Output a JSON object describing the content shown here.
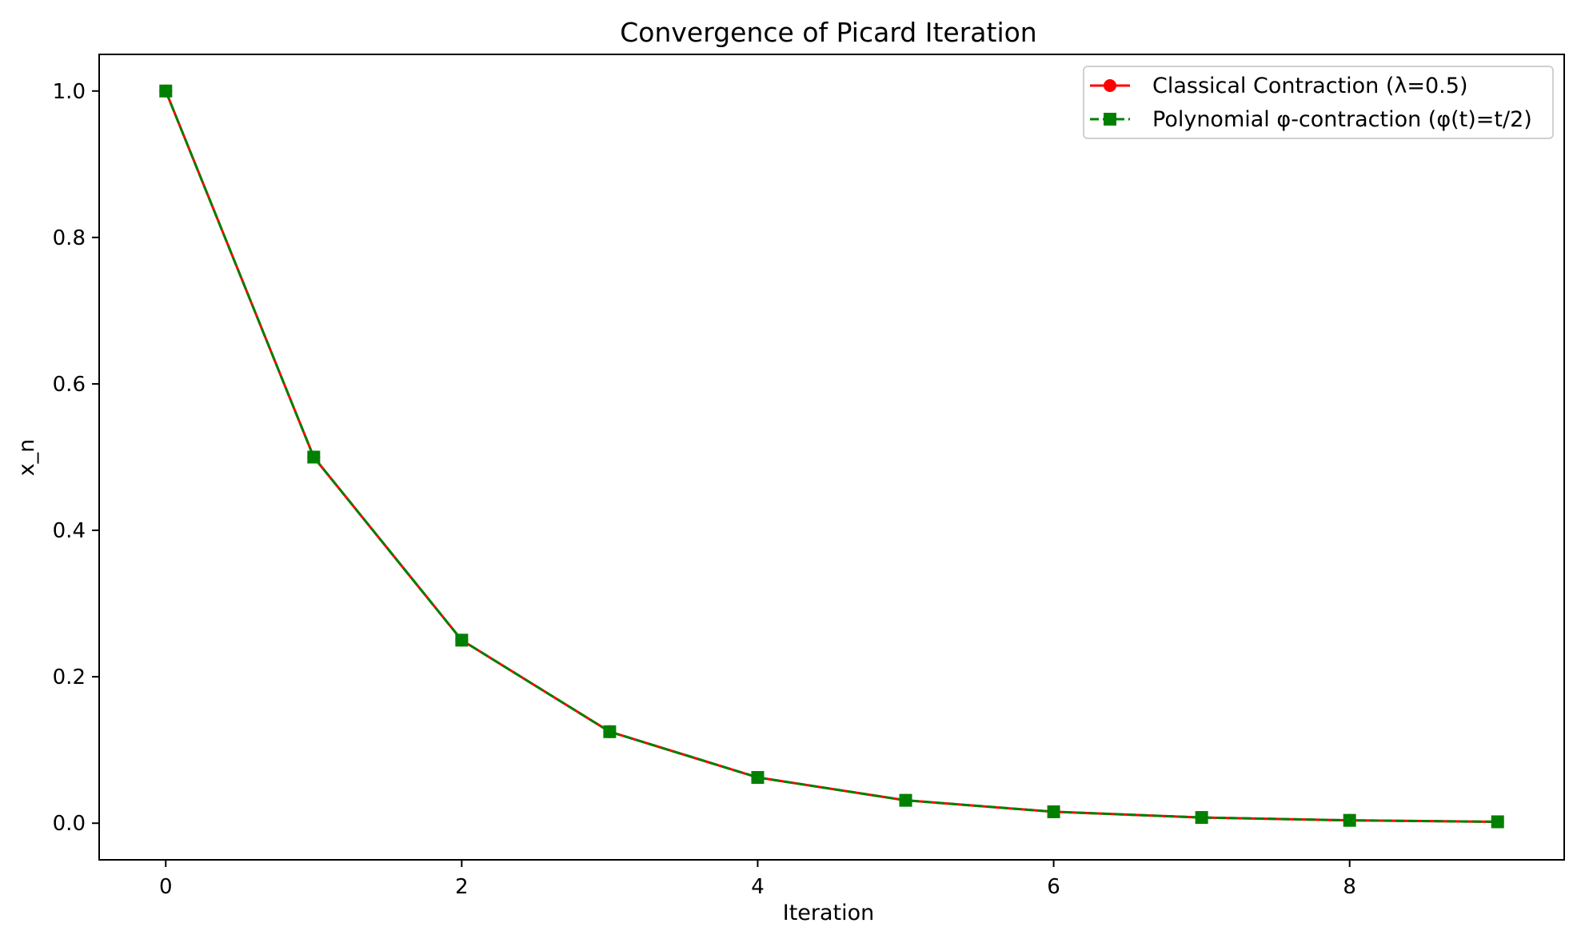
{
  "chart_data": {
    "type": "line",
    "title": "Convergence of Picard Iteration",
    "xlabel": "Iteration",
    "ylabel": "x_n",
    "x": [
      0,
      1,
      2,
      3,
      4,
      5,
      6,
      7,
      8,
      9
    ],
    "xlim": [
      -0.45,
      9.45
    ],
    "ylim": [
      -0.05,
      1.05
    ],
    "xticks": [
      0,
      2,
      4,
      6,
      8
    ],
    "xtick_labels": [
      "0",
      "2",
      "4",
      "6",
      "8"
    ],
    "yticks": [
      0.0,
      0.2,
      0.4,
      0.6,
      0.8,
      1.0
    ],
    "ytick_labels": [
      "0.0",
      "0.2",
      "0.4",
      "0.6",
      "0.8",
      "1.0"
    ],
    "grid": false,
    "legend_position": "top-right",
    "series": [
      {
        "name": "Classical Contraction (λ=0.5)",
        "color": "#ff0000",
        "line_style": "solid",
        "marker": "circle",
        "values": [
          1.0,
          0.5,
          0.25,
          0.125,
          0.0625,
          0.03125,
          0.015625,
          0.0078125,
          0.00390625,
          0.001953125
        ]
      },
      {
        "name": "Polynomial φ-contraction (φ(t)=t/2)",
        "color": "#008000",
        "line_style": "dashed",
        "marker": "square",
        "values": [
          1.0,
          0.5,
          0.25,
          0.125,
          0.0625,
          0.03125,
          0.015625,
          0.0078125,
          0.00390625,
          0.001953125
        ]
      }
    ]
  }
}
